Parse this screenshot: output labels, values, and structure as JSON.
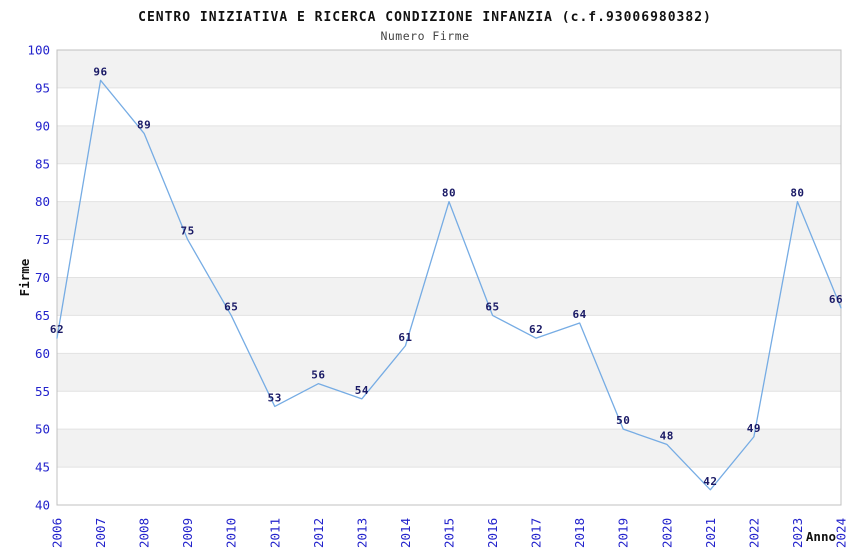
{
  "chart_data": {
    "type": "line",
    "title": "CENTRO INIZIATIVA E RICERCA CONDIZIONE INFANZIA (c.f.93006980382)",
    "subtitle": "Numero Firme",
    "xlabel": "Anno",
    "ylabel": "Firme",
    "categories": [
      "2006",
      "2007",
      "2008",
      "2009",
      "2010",
      "2011",
      "2012",
      "2013",
      "2014",
      "2015",
      "2016",
      "2017",
      "2018",
      "2019",
      "2020",
      "2021",
      "2022",
      "2023",
      "2024"
    ],
    "values": [
      62,
      96,
      89,
      75,
      65,
      53,
      56,
      54,
      61,
      80,
      65,
      62,
      64,
      50,
      48,
      42,
      49,
      80,
      66
    ],
    "ylim": [
      40,
      100
    ],
    "yticks": [
      40,
      45,
      50,
      55,
      60,
      65,
      70,
      75,
      80,
      85,
      90,
      95,
      100
    ],
    "point_labels": [
      "62",
      "96",
      "89",
      "75",
      "65",
      "53",
      "56",
      "54",
      "61",
      "80",
      "65",
      "62",
      "64",
      "50",
      "48",
      "42",
      "49",
      "80",
      "66"
    ],
    "grid": "horizontal-alternating-bands",
    "legend": "none",
    "colors": {
      "line": "#76ace4",
      "point_label": "#1a1a66",
      "tick_label": "#2323cc",
      "band": "#f2f2f2",
      "gridline": "#e2e2e2",
      "frame": "#c0c0c0",
      "title": "#111111",
      "subtitle": "#444444",
      "axis_title": "#111111",
      "background": "#ffffff"
    }
  }
}
